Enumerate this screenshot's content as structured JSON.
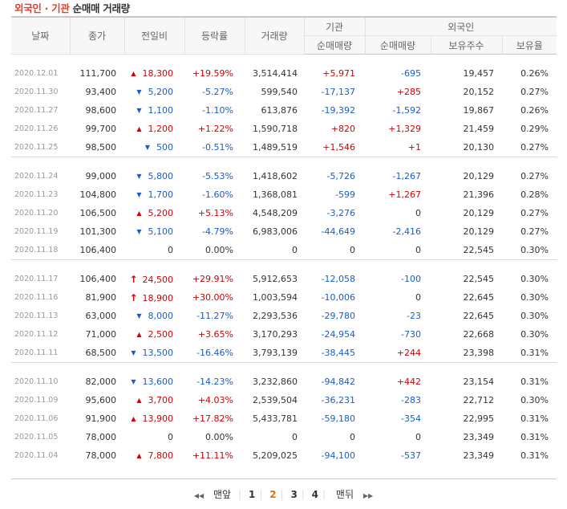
{
  "title": {
    "highlight": "외국인 · 기관",
    "rest": "순매매 거래량"
  },
  "headers": {
    "date": "날짜",
    "close": "종가",
    "change": "전일비",
    "rate": "등락률",
    "volume": "거래량",
    "institution": "기관",
    "foreigner": "외국인",
    "inst_net": "순매매량",
    "frgn_net": "순매매량",
    "frgn_hold": "보유주수",
    "frgn_ratio": "보유율"
  },
  "colors": {
    "up": "#d60000",
    "down": "#1a5dc7",
    "title_accent": "#e2402a"
  },
  "groups": [
    [
      {
        "date": "2020.12.01",
        "close": "111,700",
        "dir": "up",
        "change": "18,300",
        "rate": "+19.59%",
        "volume": "3,514,414",
        "inst": "+5,971",
        "frgn": "-695",
        "hold": "19,457",
        "ratio": "0.26%"
      },
      {
        "date": "2020.11.30",
        "close": "93,400",
        "dir": "down",
        "change": "5,200",
        "rate": "-5.27%",
        "volume": "599,540",
        "inst": "-17,137",
        "frgn": "+285",
        "hold": "20,152",
        "ratio": "0.27%"
      },
      {
        "date": "2020.11.27",
        "close": "98,600",
        "dir": "down",
        "change": "1,100",
        "rate": "-1.10%",
        "volume": "613,876",
        "inst": "-19,392",
        "frgn": "-1,592",
        "hold": "19,867",
        "ratio": "0.26%"
      },
      {
        "date": "2020.11.26",
        "close": "99,700",
        "dir": "up",
        "change": "1,200",
        "rate": "+1.22%",
        "volume": "1,590,718",
        "inst": "+820",
        "frgn": "+1,329",
        "hold": "21,459",
        "ratio": "0.29%"
      },
      {
        "date": "2020.11.25",
        "close": "98,500",
        "dir": "down",
        "change": "500",
        "rate": "-0.51%",
        "volume": "1,489,519",
        "inst": "+1,546",
        "frgn": "+1",
        "hold": "20,130",
        "ratio": "0.27%"
      }
    ],
    [
      {
        "date": "2020.11.24",
        "close": "99,000",
        "dir": "down",
        "change": "5,800",
        "rate": "-5.53%",
        "volume": "1,418,602",
        "inst": "-5,726",
        "frgn": "-1,267",
        "hold": "20,129",
        "ratio": "0.27%"
      },
      {
        "date": "2020.11.23",
        "close": "104,800",
        "dir": "down",
        "change": "1,700",
        "rate": "-1.60%",
        "volume": "1,368,081",
        "inst": "-599",
        "frgn": "+1,267",
        "hold": "21,396",
        "ratio": "0.28%"
      },
      {
        "date": "2020.11.20",
        "close": "106,500",
        "dir": "up",
        "change": "5,200",
        "rate": "+5.13%",
        "volume": "4,548,209",
        "inst": "-3,276",
        "frgn": "0",
        "hold": "20,129",
        "ratio": "0.27%"
      },
      {
        "date": "2020.11.19",
        "close": "101,300",
        "dir": "down",
        "change": "5,100",
        "rate": "-4.79%",
        "volume": "6,983,006",
        "inst": "-44,649",
        "frgn": "-2,416",
        "hold": "20,129",
        "ratio": "0.27%"
      },
      {
        "date": "2020.11.18",
        "close": "106,400",
        "dir": "none",
        "change": "0",
        "rate": "0.00%",
        "volume": "0",
        "inst": "0",
        "frgn": "0",
        "hold": "22,545",
        "ratio": "0.30%"
      }
    ],
    [
      {
        "date": "2020.11.17",
        "close": "106,400",
        "dir": "limitup",
        "change": "24,500",
        "rate": "+29.91%",
        "volume": "5,912,653",
        "inst": "-12,058",
        "frgn": "-100",
        "hold": "22,545",
        "ratio": "0.30%"
      },
      {
        "date": "2020.11.16",
        "close": "81,900",
        "dir": "limitup",
        "change": "18,900",
        "rate": "+30.00%",
        "volume": "1,003,594",
        "inst": "-10,006",
        "frgn": "0",
        "hold": "22,645",
        "ratio": "0.30%"
      },
      {
        "date": "2020.11.13",
        "close": "63,000",
        "dir": "down",
        "change": "8,000",
        "rate": "-11.27%",
        "volume": "2,293,536",
        "inst": "-29,780",
        "frgn": "-23",
        "hold": "22,645",
        "ratio": "0.30%"
      },
      {
        "date": "2020.11.12",
        "close": "71,000",
        "dir": "up",
        "change": "2,500",
        "rate": "+3.65%",
        "volume": "3,170,293",
        "inst": "-24,954",
        "frgn": "-730",
        "hold": "22,668",
        "ratio": "0.30%"
      },
      {
        "date": "2020.11.11",
        "close": "68,500",
        "dir": "down",
        "change": "13,500",
        "rate": "-16.46%",
        "volume": "3,793,139",
        "inst": "-38,445",
        "frgn": "+244",
        "hold": "23,398",
        "ratio": "0.31%"
      }
    ],
    [
      {
        "date": "2020.11.10",
        "close": "82,000",
        "dir": "down",
        "change": "13,600",
        "rate": "-14.23%",
        "volume": "3,232,860",
        "inst": "-94,842",
        "frgn": "+442",
        "hold": "23,154",
        "ratio": "0.31%"
      },
      {
        "date": "2020.11.09",
        "close": "95,600",
        "dir": "up",
        "change": "3,700",
        "rate": "+4.03%",
        "volume": "2,539,504",
        "inst": "-36,231",
        "frgn": "-283",
        "hold": "22,712",
        "ratio": "0.30%"
      },
      {
        "date": "2020.11.06",
        "close": "91,900",
        "dir": "up",
        "change": "13,900",
        "rate": "+17.82%",
        "volume": "5,433,781",
        "inst": "-59,180",
        "frgn": "-354",
        "hold": "22,995",
        "ratio": "0.31%"
      },
      {
        "date": "2020.11.05",
        "close": "78,000",
        "dir": "none",
        "change": "0",
        "rate": "0.00%",
        "volume": "0",
        "inst": "0",
        "frgn": "0",
        "hold": "23,349",
        "ratio": "0.31%"
      },
      {
        "date": "2020.11.04",
        "close": "78,000",
        "dir": "up",
        "change": "7,800",
        "rate": "+11.11%",
        "volume": "5,209,025",
        "inst": "-94,100",
        "frgn": "-537",
        "hold": "23,349",
        "ratio": "0.31%"
      }
    ]
  ],
  "pagination": {
    "first": "맨앞",
    "pages": [
      "1",
      "2",
      "3",
      "4"
    ],
    "current": "2",
    "last": "맨뒤"
  }
}
